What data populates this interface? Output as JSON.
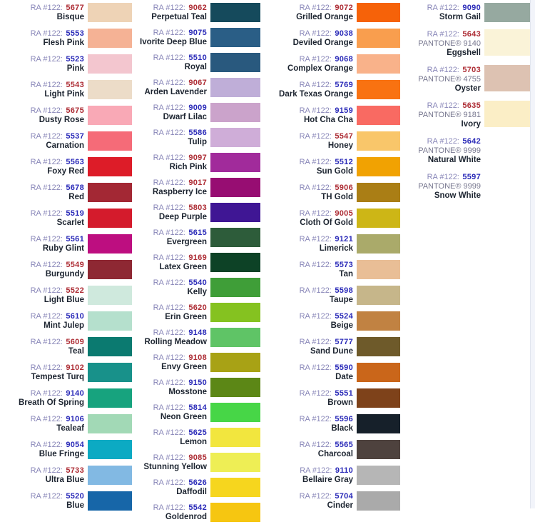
{
  "page": {
    "title": "RA #122 thread color chart",
    "prefix_label": "RA #122:",
    "styles": {
      "prefix_color": "#8886b8",
      "number_blue": "#2a2ab8",
      "number_red": "#ad2c34",
      "name_color": "#1c2430",
      "background": "#ffffff"
    }
  },
  "columns": [
    {
      "entries": [
        {
          "prefix": "RA #122:",
          "number": "5677",
          "number_color": "red",
          "name": "Bisque",
          "swatch": "#eed3b6"
        },
        {
          "prefix": "RA #122:",
          "number": "5553",
          "number_color": "blue",
          "name": "Flesh Pink",
          "swatch": "#f5b295"
        },
        {
          "prefix": "RA #122:",
          "number": "5523",
          "number_color": "blue",
          "name": "Pink",
          "swatch": "#f3c6cf"
        },
        {
          "prefix": "RA #122:",
          "number": "5543",
          "number_color": "red",
          "name": "Light Pink",
          "swatch": "#ecdcc8"
        },
        {
          "prefix": "RA #122:",
          "number": "5675",
          "number_color": "red",
          "name": "Dusty Rose",
          "swatch": "#f9a9b6"
        },
        {
          "prefix": "RA #122:",
          "number": "5537",
          "number_color": "blue",
          "name": "Carnation",
          "swatch": "#f56b78"
        },
        {
          "prefix": "RA #122:",
          "number": "5563",
          "number_color": "blue",
          "name": "Foxy Red",
          "swatch": "#dd1c28"
        },
        {
          "prefix": "RA #122:",
          "number": "5678",
          "number_color": "blue",
          "name": "Red",
          "swatch": "#a32834"
        },
        {
          "prefix": "RA #122:",
          "number": "5519",
          "number_color": "blue",
          "name": "Scarlet",
          "swatch": "#d41b2c"
        },
        {
          "prefix": "RA #122:",
          "number": "5561",
          "number_color": "blue",
          "name": "Ruby Glint",
          "swatch": "#bd0e80"
        },
        {
          "prefix": "RA #122:",
          "number": "5549",
          "number_color": "red",
          "name": "Burgundy",
          "swatch": "#8e2833"
        },
        {
          "prefix": "RA #122:",
          "number": "5522",
          "number_color": "red",
          "name": "Light Blue",
          "swatch": "#cfe9dd"
        },
        {
          "prefix": "RA #122:",
          "number": "5610",
          "number_color": "blue",
          "name": "Mint Julep",
          "swatch": "#b5e0cd"
        },
        {
          "prefix": "RA #122:",
          "number": "5609",
          "number_color": "red",
          "name": "Teal",
          "swatch": "#0b7a70"
        },
        {
          "prefix": "RA #122:",
          "number": "9102",
          "number_color": "red",
          "name": "Tempest Turq",
          "swatch": "#18918a"
        },
        {
          "prefix": "RA #122:",
          "number": "9140",
          "number_color": "blue",
          "name": "Breath Of Spring",
          "swatch": "#17a37e"
        },
        {
          "prefix": "RA #122:",
          "number": "9106",
          "number_color": "blue",
          "name": "Tealeaf",
          "swatch": "#a2d9b6"
        },
        {
          "prefix": "RA #122:",
          "number": "9054",
          "number_color": "blue",
          "name": "Blue Fringe",
          "swatch": "#0caac3"
        },
        {
          "prefix": "RA #122:",
          "number": "5733",
          "number_color": "red",
          "name": "Ultra Blue",
          "swatch": "#82b9e3"
        },
        {
          "prefix": "RA #122:",
          "number": "5520",
          "number_color": "blue",
          "name": "Blue",
          "swatch": "#1766a8"
        }
      ]
    },
    {
      "entries": [
        {
          "prefix": "RA #122:",
          "number": "9062",
          "number_color": "red",
          "name": "Perpetual Teal",
          "swatch": "#154a5c"
        },
        {
          "prefix": "RA #122:",
          "number": "9075",
          "number_color": "blue",
          "name": "Ivorite Deep Blue",
          "swatch": "#2a5e86"
        },
        {
          "prefix": "RA #122:",
          "number": "5510",
          "number_color": "blue",
          "name": "Royal",
          "swatch": "#29597e"
        },
        {
          "prefix": "RA #122:",
          "number": "9067",
          "number_color": "red",
          "name": "Arden Lavender",
          "swatch": "#bfaed8"
        },
        {
          "prefix": "RA #122:",
          "number": "9009",
          "number_color": "blue",
          "name": "Dwarf Lilac",
          "swatch": "#cba3cb"
        },
        {
          "prefix": "RA #122:",
          "number": "5586",
          "number_color": "blue",
          "name": "Tulip",
          "swatch": "#cfadd8"
        },
        {
          "prefix": "RA #122:",
          "number": "9097",
          "number_color": "red",
          "name": "Rich Pink",
          "swatch": "#a12b9b"
        },
        {
          "prefix": "RA #122:",
          "number": "9017",
          "number_color": "red",
          "name": "Raspberry Ice",
          "swatch": "#970d72"
        },
        {
          "prefix": "RA #122:",
          "number": "5803",
          "number_color": "red",
          "name": "Deep Purple",
          "swatch": "#3f1694"
        },
        {
          "prefix": "RA #122:",
          "number": "5615",
          "number_color": "blue",
          "name": "Evergreen",
          "swatch": "#2d5c3a"
        },
        {
          "prefix": "RA #122:",
          "number": "9169",
          "number_color": "red",
          "name": "Latex Green",
          "swatch": "#0d4226"
        },
        {
          "prefix": "RA #122:",
          "number": "5540",
          "number_color": "blue",
          "name": "Kelly",
          "swatch": "#3f9e38"
        },
        {
          "prefix": "RA #122:",
          "number": "5620",
          "number_color": "red",
          "name": "Erin Green",
          "swatch": "#85c220"
        },
        {
          "prefix": "RA #122:",
          "number": "9148",
          "number_color": "blue",
          "name": "Rolling Meadow",
          "swatch": "#5fc466"
        },
        {
          "prefix": "RA #122:",
          "number": "9108",
          "number_color": "red",
          "name": "Envy Green",
          "swatch": "#a8a215"
        },
        {
          "prefix": "RA #122:",
          "number": "9150",
          "number_color": "blue",
          "name": "Mosstone",
          "swatch": "#5c8716"
        },
        {
          "prefix": "RA #122:",
          "number": "5814",
          "number_color": "blue",
          "name": "Neon Green",
          "swatch": "#47d647"
        },
        {
          "prefix": "RA #122:",
          "number": "5625",
          "number_color": "blue",
          "name": "Lemon",
          "swatch": "#f2e63e"
        },
        {
          "prefix": "RA #122:",
          "number": "9085",
          "number_color": "red",
          "name": "Stunning Yellow",
          "swatch": "#eeee55"
        },
        {
          "prefix": "RA #122:",
          "number": "5626",
          "number_color": "blue",
          "name": "Daffodil",
          "swatch": "#f6d61e"
        },
        {
          "prefix": "RA #122:",
          "number": "5542",
          "number_color": "blue",
          "name": "Goldenrod",
          "swatch": "#f6c611"
        }
      ]
    },
    {
      "entries": [
        {
          "prefix": "RA #122:",
          "number": "9072",
          "number_color": "red",
          "name": "Grilled Orange",
          "swatch": "#f66209"
        },
        {
          "prefix": "RA #122:",
          "number": "9038",
          "number_color": "blue",
          "name": "Deviled Orange",
          "swatch": "#f99e4e"
        },
        {
          "prefix": "RA #122:",
          "number": "9068",
          "number_color": "blue",
          "name": "Complex Orange",
          "swatch": "#f9b28a"
        },
        {
          "prefix": "RA #122:",
          "number": "5769",
          "number_color": "blue",
          "name": "Dark Texas Orange",
          "swatch": "#f97211"
        },
        {
          "prefix": "RA #122:",
          "number": "9159",
          "number_color": "blue",
          "name": "Hot Cha Cha",
          "swatch": "#f96a62"
        },
        {
          "prefix": "RA #122:",
          "number": "5547",
          "number_color": "red",
          "name": "Honey",
          "swatch": "#f9c66a"
        },
        {
          "prefix": "RA #122:",
          "number": "5512",
          "number_color": "blue",
          "name": "Sun Gold",
          "swatch": "#f1a202"
        },
        {
          "prefix": "RA #122:",
          "number": "5906",
          "number_color": "red",
          "name": "TH Gold",
          "swatch": "#aa7e15"
        },
        {
          "prefix": "RA #122:",
          "number": "9005",
          "number_color": "red",
          "name": "Cloth Of Gold",
          "swatch": "#cdb616"
        },
        {
          "prefix": "RA #122:",
          "number": "9121",
          "number_color": "blue",
          "name": "Limerick",
          "swatch": "#aaaa6a"
        },
        {
          "prefix": "RA #122:",
          "number": "5573",
          "number_color": "blue",
          "name": "Tan",
          "swatch": "#e9be96"
        },
        {
          "prefix": "RA #122:",
          "number": "5598",
          "number_color": "blue",
          "name": "Taupe",
          "swatch": "#c6b68a"
        },
        {
          "prefix": "RA #122:",
          "number": "5524",
          "number_color": "blue",
          "name": "Beige",
          "swatch": "#c18242"
        },
        {
          "prefix": "RA #122:",
          "number": "5777",
          "number_color": "blue",
          "name": "Sand Dune",
          "swatch": "#6e5a2a"
        },
        {
          "prefix": "RA #122:",
          "number": "5590",
          "number_color": "blue",
          "name": "Date",
          "swatch": "#ca661a"
        },
        {
          "prefix": "RA #122:",
          "number": "5551",
          "number_color": "blue",
          "name": "Brown",
          "swatch": "#7e421a"
        },
        {
          "prefix": "RA #122:",
          "number": "5596",
          "number_color": "blue",
          "name": "Black",
          "swatch": "#16202a"
        },
        {
          "prefix": "RA #122:",
          "number": "5565",
          "number_color": "blue",
          "name": "Charcoal",
          "swatch": "#4e423e"
        },
        {
          "prefix": "RA #122:",
          "number": "9110",
          "number_color": "blue",
          "name": "Bellaire Gray",
          "swatch": "#b6b6b6"
        },
        {
          "prefix": "RA #122:",
          "number": "5704",
          "number_color": "blue",
          "name": "Cinder",
          "swatch": "#aaaaaa"
        }
      ]
    },
    {
      "entries": [
        {
          "prefix": "RA #122:",
          "number": "9090",
          "number_color": "blue",
          "name": "Storm Gail",
          "swatch": "#96a9a0"
        },
        {
          "prefix": "RA #122:",
          "number": "5643",
          "number_color": "red",
          "pantone": "PANTONE® 9140",
          "name": "Eggshell",
          "swatch": "#faf3d8"
        },
        {
          "prefix": "RA #122:",
          "number": "5703",
          "number_color": "red",
          "pantone": "PANTONE® 4755",
          "name": "Oyster",
          "swatch": "#ddc2b2"
        },
        {
          "prefix": "RA #122:",
          "number": "5635",
          "number_color": "red",
          "pantone": "PANTONE® 9181",
          "name": "Ivory",
          "swatch": "#fbeec6"
        },
        {
          "prefix": "RA #122:",
          "number": "5642",
          "number_color": "blue",
          "pantone": "PANTONE® 9999",
          "name": "Natural White",
          "swatch": "#ffffff"
        },
        {
          "prefix": "RA #122:",
          "number": "5597",
          "number_color": "blue",
          "pantone": "PANTONE® 9999",
          "name": "Snow White",
          "swatch": "#ffffff"
        }
      ]
    }
  ]
}
